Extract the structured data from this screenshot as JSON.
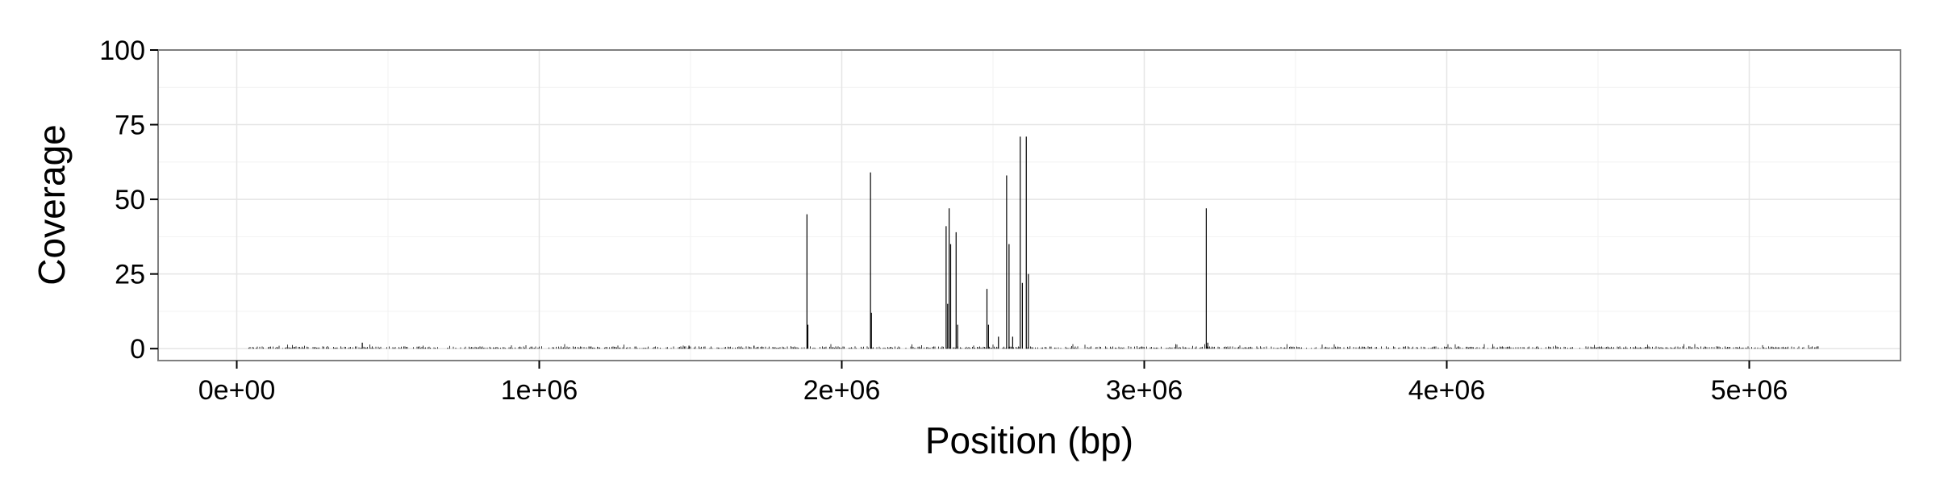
{
  "chart_data": {
    "type": "bar",
    "title": "",
    "xlabel": "Position (bp)",
    "ylabel": "Coverage",
    "xlim": [
      -260000,
      5500000
    ],
    "ylim": [
      -4,
      100
    ],
    "x_ticks": [
      0,
      1000000,
      2000000,
      3000000,
      4000000,
      5000000
    ],
    "x_tick_labels": [
      "0e+00",
      "1e+06",
      "2e+06",
      "3e+06",
      "4e+06",
      "5e+06"
    ],
    "y_ticks": [
      0,
      25,
      50,
      75,
      100
    ],
    "y_tick_labels": [
      "0",
      "25",
      "50",
      "75",
      "100"
    ],
    "grid": true,
    "background": "#ffffff",
    "bar_color": "#000000",
    "series": [
      {
        "x": [
          1885000,
          1888000,
          2095000,
          2098000,
          2345000,
          2350000,
          2355000,
          2360000,
          2378000,
          2383000,
          2480000,
          2485000,
          2518000,
          2545000,
          2553000,
          2565000,
          2590000,
          2597000,
          2610000,
          2617000,
          3205000,
          3210000,
          415000,
          1495000,
          1710000
        ],
        "values": [
          45,
          8,
          59,
          12,
          41,
          15,
          47,
          35,
          39,
          8,
          20,
          8,
          4,
          58,
          35,
          4,
          71,
          22,
          71,
          25,
          47,
          2,
          2,
          1,
          1
        ]
      }
    ],
    "baseline_noise": {
      "x_range": [
        40000,
        5230000
      ],
      "typical_value": 0.6,
      "max_value": 1.5
    }
  }
}
